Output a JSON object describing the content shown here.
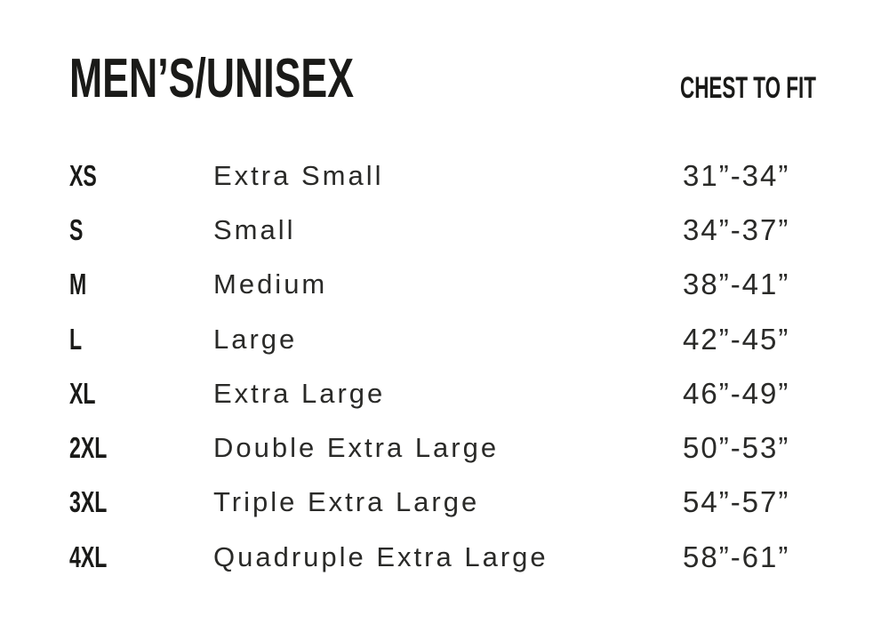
{
  "header": {
    "title": "MEN’S/UNISEX",
    "chest_to_fit_label": "CHEST TO FIT"
  },
  "size_chart": {
    "columns": [
      "size_code",
      "size_name",
      "chest_to_fit"
    ],
    "rows": [
      {
        "code": "XS",
        "name": "Extra Small",
        "chest_range": "31”-34”"
      },
      {
        "code": "S",
        "name": "Small",
        "chest_range": "34”-37”"
      },
      {
        "code": "M",
        "name": "Medium",
        "chest_range": "38”-41”"
      },
      {
        "code": "L",
        "name": "Large",
        "chest_range": "42”-45”"
      },
      {
        "code": "XL",
        "name": "Extra Large",
        "chest_range": "46”-49”"
      },
      {
        "code": "2XL",
        "name": "Double Extra Large",
        "chest_range": "50”-53”"
      },
      {
        "code": "3XL",
        "name": "Triple Extra Large",
        "chest_range": "54”-57”"
      },
      {
        "code": "4XL",
        "name": "Quadruple Extra Large",
        "chest_range": "58”-61”"
      }
    ]
  },
  "colors": {
    "text_bold": "#1a1a18",
    "text_regular": "#2a2a28",
    "background": "#ffffff"
  }
}
